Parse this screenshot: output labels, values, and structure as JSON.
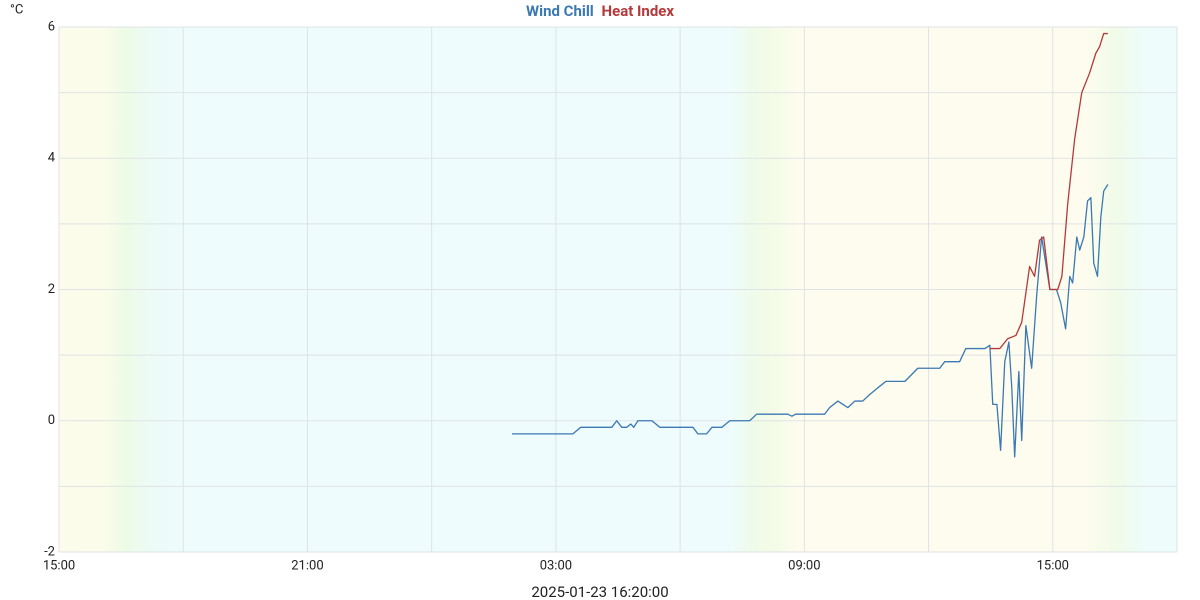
{
  "chart_data": {
    "type": "line",
    "series": [
      {
        "name": "Wind Chill",
        "color": "#3b78b4",
        "x": [
          10.94,
          12.41,
          12.6,
          13.35,
          13.47,
          13.59,
          13.71,
          13.81,
          13.88,
          13.98,
          14.32,
          14.51,
          15.31,
          15.43,
          15.64,
          15.77,
          16.01,
          16.2,
          16.68,
          16.85,
          17.6,
          17.7,
          17.79,
          18.49,
          18.61,
          18.81,
          18.93,
          19.05,
          19.22,
          19.41,
          19.58,
          19.77,
          19.97,
          20.43,
          20.74,
          21.27,
          21.39,
          21.75,
          21.9,
          22.36,
          22.48,
          22.55,
          22.65,
          22.74,
          22.84,
          22.94,
          23.01,
          23.08,
          23.18,
          23.25,
          23.35,
          23.49,
          23.61,
          23.73,
          23.83,
          23.93,
          24.09,
          24.19,
          24.31,
          24.41,
          24.48,
          24.58,
          24.65,
          24.75,
          24.84,
          24.92,
          24.99,
          25.08,
          25.16,
          25.23,
          25.33
        ],
        "values": [
          -0.2,
          -0.2,
          -0.1,
          -0.1,
          0.0,
          -0.1,
          -0.1,
          -0.05,
          -0.1,
          0.0,
          0.0,
          -0.1,
          -0.1,
          -0.2,
          -0.2,
          -0.1,
          -0.1,
          0.0,
          0.0,
          0.1,
          0.1,
          0.07,
          0.1,
          0.1,
          0.2,
          0.3,
          0.25,
          0.2,
          0.3,
          0.3,
          0.4,
          0.5,
          0.6,
          0.6,
          0.8,
          0.8,
          0.9,
          0.9,
          1.1,
          1.1,
          1.15,
          0.25,
          0.25,
          -0.45,
          0.9,
          1.2,
          0.5,
          -0.55,
          0.75,
          -0.3,
          1.45,
          0.8,
          1.9,
          2.8,
          2.4,
          2.0,
          2.0,
          1.8,
          1.4,
          2.2,
          2.1,
          2.8,
          2.6,
          2.8,
          3.35,
          3.4,
          2.4,
          2.2,
          3.1,
          3.5,
          3.6
        ]
      },
      {
        "name": "Heat Index",
        "color": "#b5393b",
        "x": [
          22.48,
          22.72,
          22.91,
          23.11,
          23.25,
          23.44,
          23.56,
          23.68,
          23.78,
          23.93,
          24.12,
          24.22,
          24.36,
          24.53,
          24.7,
          24.89,
          25.04,
          25.13,
          25.23,
          25.33
        ],
        "values": [
          1.1,
          1.1,
          1.25,
          1.3,
          1.5,
          2.35,
          2.2,
          2.75,
          2.8,
          2.0,
          2.0,
          2.2,
          3.3,
          4.3,
          5.0,
          5.3,
          5.6,
          5.7,
          5.9,
          5.9
        ]
      }
    ],
    "y_label": "°C",
    "x_label": "2025-01-23 16:20:00",
    "xlim": [
      0,
      27
    ],
    "xticks": [
      {
        "value": 0,
        "label": "15:00"
      },
      {
        "value": 3,
        "label": null
      },
      {
        "value": 6,
        "label": "21:00"
      },
      {
        "value": 9,
        "label": null
      },
      {
        "value": 12,
        "label": "03:00"
      },
      {
        "value": 15,
        "label": null
      },
      {
        "value": 18,
        "label": "09:00"
      },
      {
        "value": 21,
        "label": null
      },
      {
        "value": 24,
        "label": "15:00"
      },
      {
        "value": 27,
        "label": null
      }
    ],
    "ylim": [
      -2,
      6
    ],
    "yticks": [
      -2,
      {
        "value": -1,
        "label": null
      },
      0,
      {
        "value": 1,
        "label": null
      },
      2,
      {
        "value": 3,
        "label": null
      },
      4,
      {
        "value": 5,
        "label": null
      },
      6
    ],
    "grid": true
  }
}
